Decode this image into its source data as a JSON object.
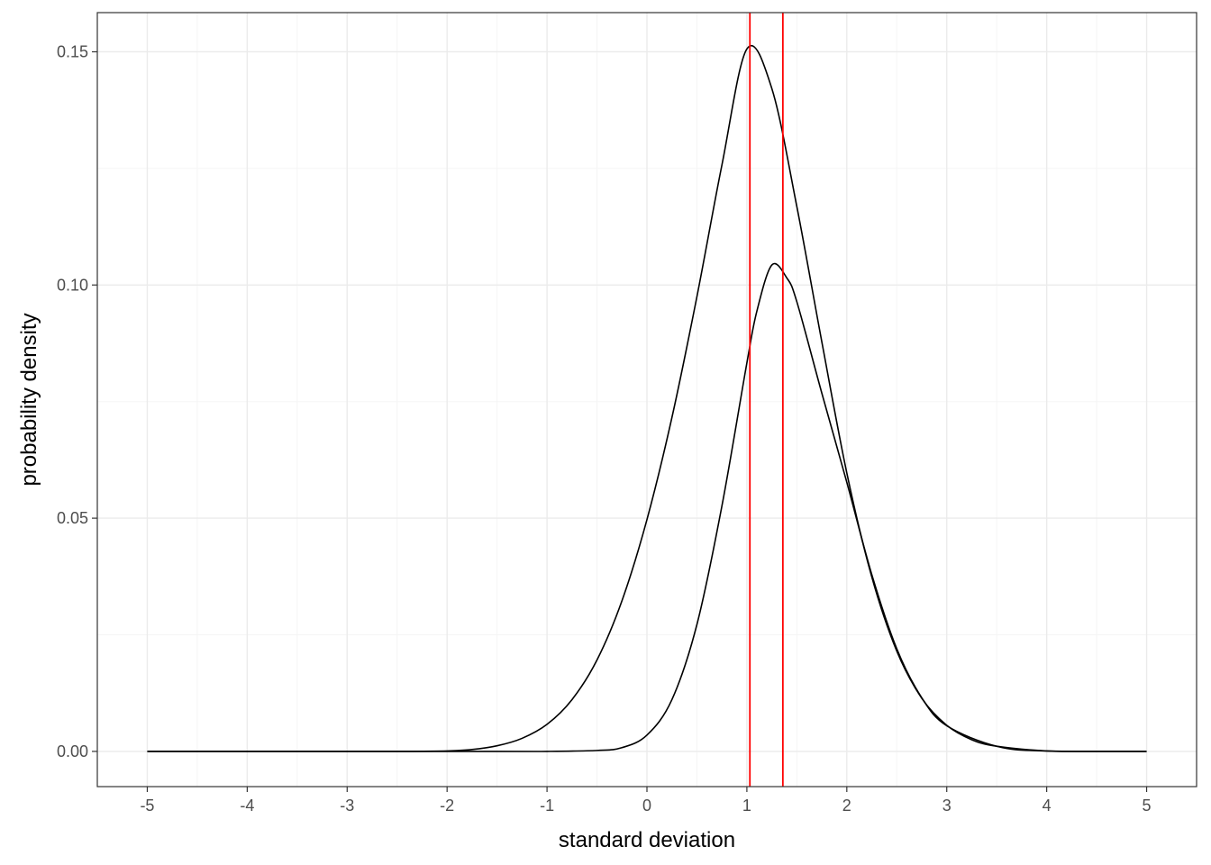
{
  "chart_data": {
    "type": "line",
    "title": "",
    "xlabel": "standard deviation",
    "ylabel": "probability density",
    "xlim": [
      -5.5,
      5.5
    ],
    "ylim": [
      -0.00755,
      0.1584
    ],
    "x_ticks": [
      -5,
      -4,
      -3,
      -2,
      -1,
      0,
      1,
      2,
      3,
      4,
      5
    ],
    "x_tick_labels": [
      "-5",
      "-4",
      "-3",
      "-2",
      "-1",
      "0",
      "1",
      "2",
      "3",
      "4",
      "5"
    ],
    "x_minor_ticks": [
      -4.5,
      -3.5,
      -2.5,
      -1.5,
      -0.5,
      0.5,
      1.5,
      2.5,
      3.5,
      4.5
    ],
    "y_ticks": [
      0.0,
      0.05,
      0.1,
      0.15
    ],
    "y_tick_labels": [
      "0.00",
      "0.05",
      "0.10",
      "0.15"
    ],
    "y_minor_ticks": [
      0.025,
      0.075,
      0.125
    ],
    "grid": true,
    "series": [
      {
        "color": "#000000",
        "x": [
          -5,
          -4,
          -3,
          -2.5,
          -2,
          -1.75,
          -1.5,
          -1.25,
          -1,
          -0.75,
          -0.5,
          -0.25,
          0,
          0.25,
          0.5,
          0.75,
          1,
          1.25,
          1.5,
          1.75,
          2,
          2.25,
          2.5,
          2.75,
          3,
          3.25,
          3.5,
          4,
          4.5,
          5
        ],
        "values": [
          0,
          0,
          0,
          0,
          0.0001,
          0.0004,
          0.0012,
          0.0028,
          0.0058,
          0.0111,
          0.0196,
          0.0323,
          0.0497,
          0.0716,
          0.0975,
          0.1257,
          0.1506,
          0.1421,
          0.1168,
          0.0878,
          0.0597,
          0.0374,
          0.0215,
          0.0114,
          0.0056,
          0.0025,
          0.0011,
          0.0001,
          0,
          0
        ]
      },
      {
        "color": "#000000",
        "x": [
          -5,
          -1.5,
          -1,
          -0.5,
          -0.25,
          0,
          0.25,
          0.5,
          0.75,
          1,
          1.1,
          1.25,
          1.4,
          1.5,
          1.75,
          2,
          2.25,
          2.5,
          2.75,
          3,
          3.5,
          4,
          5
        ],
        "values": [
          0,
          0,
          0,
          0.0002,
          0.0008,
          0.0035,
          0.0111,
          0.0272,
          0.0526,
          0.0833,
          0.0944,
          0.1043,
          0.1015,
          0.0964,
          0.0768,
          0.0577,
          0.0379,
          0.022,
          0.0115,
          0.0055,
          0.0011,
          0.0001,
          0
        ]
      }
    ],
    "vlines": [
      {
        "x": 1.03,
        "color": "#ff0000"
      },
      {
        "x": 1.36,
        "color": "#ff0000"
      }
    ],
    "colors": {
      "background": "#ffffff",
      "grid_major": "#ebebeb",
      "grid_minor": "#f5f5f5",
      "panel_border": "#333333",
      "tick_text": "#4d4d4d"
    }
  }
}
